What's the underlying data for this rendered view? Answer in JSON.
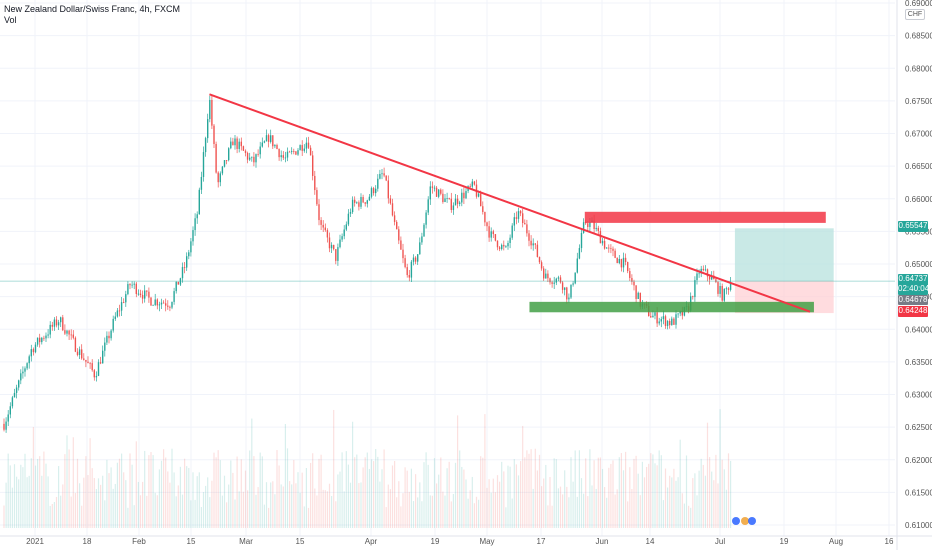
{
  "header": {
    "title": "New Zealand Dollar/Swiss Franc, 4h, FXCM",
    "vol_label": "Vol"
  },
  "axis": {
    "currency": "CHF",
    "price_ticks": [
      "0.69000",
      "0.68500",
      "0.68000",
      "0.67500",
      "0.67000",
      "0.66500",
      "0.66000",
      "0.65500",
      "0.65000",
      "0.64500",
      "0.64000",
      "0.63500",
      "0.63000",
      "0.62500",
      "0.62000",
      "0.61500",
      "0.61000"
    ],
    "date_ticks": [
      "2021",
      "18",
      "Feb",
      "15",
      "Mar",
      "15",
      "Apr",
      "19",
      "May",
      "17",
      "Jun",
      "14",
      "Jul",
      "19",
      "Aug",
      "16"
    ]
  },
  "price_labels": {
    "target": "0.65547",
    "current": "0.64737",
    "countdown": "02:40:04",
    "prev": "0.64678",
    "stop": "0.64248"
  },
  "colors": {
    "up": "#26a69a",
    "down": "#ef5350",
    "trendline": "#f23645",
    "resistance": "#f23645",
    "support": "#43a047",
    "profit_zone": "#b2dfdb",
    "loss_zone": "#ffcdd2"
  },
  "chart_data": {
    "type": "candlestick",
    "title": "New Zealand Dollar/Swiss Franc, 4h, FXCM",
    "ylim": [
      0.6093,
      0.6905
    ],
    "x_ticks": [
      "2021",
      "18",
      "Feb",
      "15",
      "Mar",
      "15",
      "Apr",
      "19",
      "May",
      "17",
      "Jun",
      "14",
      "Jul",
      "19",
      "Aug",
      "16"
    ],
    "price_path": [
      [
        "2021-01-04",
        0.6255
      ],
      [
        "2021-01-11",
        0.637
      ],
      [
        "2021-01-18",
        0.6415
      ],
      [
        "2021-01-22",
        0.6375
      ],
      [
        "2021-01-27",
        0.633
      ],
      [
        "2021-02-01",
        0.6415
      ],
      [
        "2021-02-05",
        0.647
      ],
      [
        "2021-02-10",
        0.6445
      ],
      [
        "2021-02-15",
        0.644
      ],
      [
        "2021-02-19",
        0.65
      ],
      [
        "2021-02-22",
        0.658
      ],
      [
        "2021-02-25",
        0.6755
      ],
      [
        "2021-02-27",
        0.662
      ],
      [
        "2021-03-03",
        0.669
      ],
      [
        "2021-03-08",
        0.6655
      ],
      [
        "2021-03-12",
        0.6695
      ],
      [
        "2021-03-16",
        0.666
      ],
      [
        "2021-03-22",
        0.669
      ],
      [
        "2021-03-25",
        0.656
      ],
      [
        "2021-03-29",
        0.651
      ],
      [
        "2021-04-02",
        0.659
      ],
      [
        "2021-04-06",
        0.66
      ],
      [
        "2021-04-10",
        0.664
      ],
      [
        "2021-04-13",
        0.6555
      ],
      [
        "2021-04-16",
        0.648
      ],
      [
        "2021-04-19",
        0.652
      ],
      [
        "2021-04-22",
        0.662
      ],
      [
        "2021-04-27",
        0.659
      ],
      [
        "2021-05-03",
        0.662
      ],
      [
        "2021-05-07",
        0.6545
      ],
      [
        "2021-05-11",
        0.652
      ],
      [
        "2021-05-14",
        0.658
      ],
      [
        "2021-05-18",
        0.653
      ],
      [
        "2021-05-21",
        0.648
      ],
      [
        "2021-05-25",
        0.6475
      ],
      [
        "2021-05-27",
        0.6445
      ],
      [
        "2021-05-31",
        0.6565
      ],
      [
        "2021-06-02",
        0.656
      ],
      [
        "2021-06-06",
        0.652
      ],
      [
        "2021-06-10",
        0.65
      ],
      [
        "2021-06-14",
        0.644
      ],
      [
        "2021-06-17",
        0.642
      ],
      [
        "2021-06-22",
        0.641
      ],
      [
        "2021-06-26",
        0.643
      ],
      [
        "2021-06-29",
        0.649
      ],
      [
        "2021-07-02",
        0.648
      ],
      [
        "2021-07-05",
        0.645
      ],
      [
        "2021-07-07",
        0.6474
      ]
    ],
    "annotations": {
      "trendline": {
        "from": [
          "2021-02-25",
          0.676
        ],
        "to": [
          "2021-07-27",
          0.6427
        ]
      },
      "resistance_zone": {
        "from": "2021-05-31",
        "to": "2021-07-31",
        "low": 0.6563,
        "high": 0.658
      },
      "support_zone": {
        "from": "2021-05-17",
        "to": "2021-07-28",
        "low": 0.6426,
        "high": 0.6442
      },
      "long_position": {
        "from": "2021-07-08",
        "to": "2021-08-02",
        "entry": 0.64737,
        "target": 0.65547,
        "stop": 0.64248
      }
    }
  }
}
